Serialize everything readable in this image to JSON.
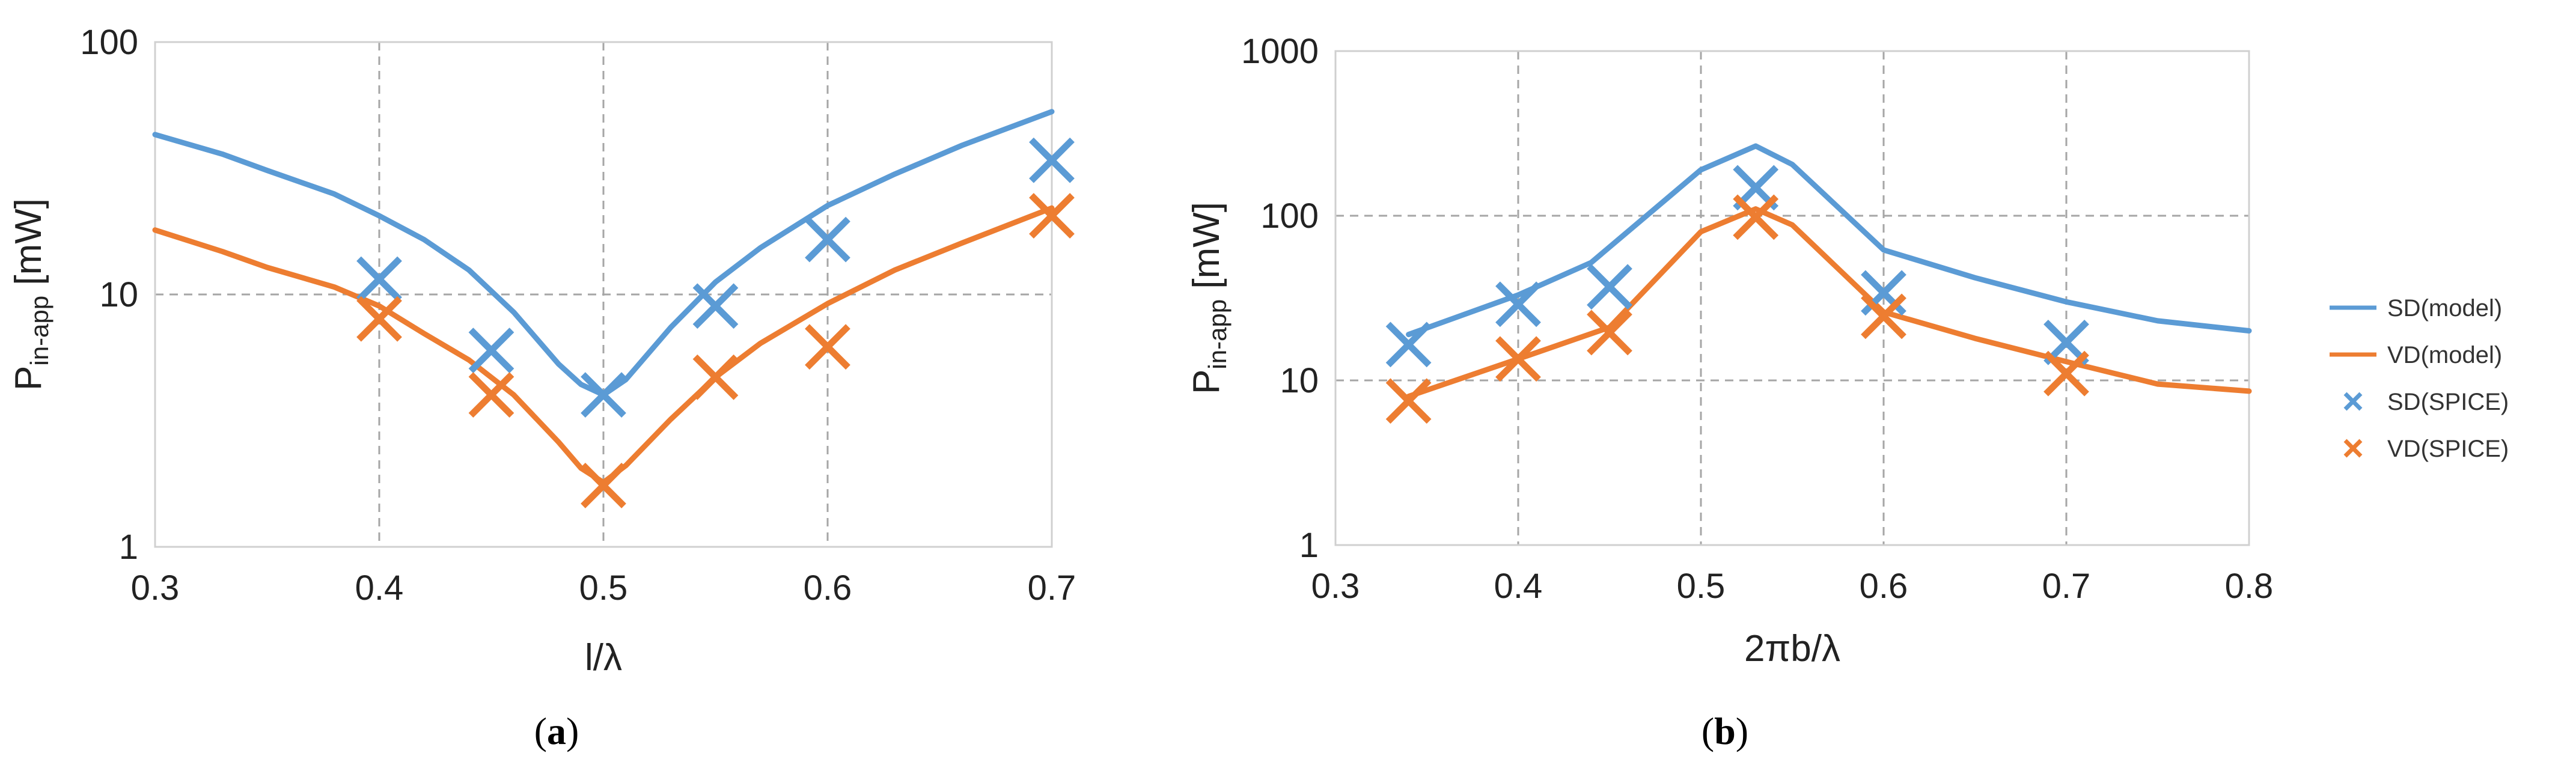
{
  "chart_data": [
    {
      "id": "a",
      "type": "line",
      "caption_letter": "a",
      "xlabel": "l/λ",
      "ylabel_main": "P",
      "ylabel_sub": "in-app",
      "ylabel_unit": " [mW]",
      "yscale": "log",
      "xlim": [
        0.3,
        0.7
      ],
      "ylim": [
        1,
        100
      ],
      "xticks": [
        "0.3",
        "0.4",
        "0.5",
        "0.6",
        "0.7"
      ],
      "xtick_values": [
        0.3,
        0.4,
        0.5,
        0.6,
        0.7
      ],
      "yticks": [
        "1",
        "10",
        "100"
      ],
      "ytick_values": [
        1,
        10,
        100
      ],
      "grid": true,
      "series": [
        {
          "name": "SD(model)",
          "kind": "line",
          "color": "#5B9BD5",
          "x": [
            0.3,
            0.33,
            0.35,
            0.38,
            0.4,
            0.42,
            0.44,
            0.46,
            0.48,
            0.49,
            0.5,
            0.51,
            0.53,
            0.55,
            0.57,
            0.6,
            0.63,
            0.66,
            0.7
          ],
          "y": [
            43,
            36,
            31,
            25,
            20.5,
            16.5,
            12.5,
            8.5,
            5.3,
            4.4,
            4.0,
            4.6,
            7.4,
            11.2,
            15.3,
            22.5,
            30,
            39,
            53
          ]
        },
        {
          "name": "VD(model)",
          "kind": "line",
          "color": "#ED7D31",
          "x": [
            0.3,
            0.33,
            0.35,
            0.38,
            0.4,
            0.42,
            0.44,
            0.46,
            0.48,
            0.49,
            0.5,
            0.51,
            0.53,
            0.55,
            0.57,
            0.6,
            0.63,
            0.66,
            0.7
          ],
          "y": [
            18,
            14.8,
            12.8,
            10.7,
            9.0,
            7.0,
            5.5,
            4.0,
            2.6,
            2.05,
            1.8,
            2.1,
            3.2,
            4.7,
            6.4,
            9.2,
            12.5,
            16,
            22
          ]
        },
        {
          "name": "SD(SPICE)",
          "kind": "marker",
          "color": "#5B9BD5",
          "x": [
            0.4,
            0.45,
            0.5,
            0.55,
            0.6,
            0.7
          ],
          "y": [
            11.5,
            6.0,
            4.0,
            9.0,
            16.5,
            34
          ]
        },
        {
          "name": "VD(SPICE)",
          "kind": "marker",
          "color": "#ED7D31",
          "x": [
            0.4,
            0.45,
            0.5,
            0.55,
            0.6,
            0.7
          ],
          "y": [
            8.0,
            4.0,
            1.75,
            4.7,
            6.2,
            20.5
          ]
        }
      ]
    },
    {
      "id": "b",
      "type": "line",
      "caption_letter": "b",
      "xlabel": "2πb/λ",
      "ylabel_main": "P",
      "ylabel_sub": "in-app",
      "ylabel_unit": " [mW]",
      "yscale": "log",
      "xlim": [
        0.3,
        0.8
      ],
      "ylim": [
        1,
        1000
      ],
      "xticks": [
        "0.3",
        "0.4",
        "0.5",
        "0.6",
        "0.7",
        "0.8"
      ],
      "xtick_values": [
        0.3,
        0.4,
        0.5,
        0.6,
        0.7,
        0.8
      ],
      "yticks": [
        "1",
        "10",
        "100",
        "1000"
      ],
      "ytick_values": [
        1,
        10,
        100,
        1000
      ],
      "grid": true,
      "series": [
        {
          "name": "SD(model)",
          "kind": "line",
          "color": "#5B9BD5",
          "x": [
            0.34,
            0.4,
            0.44,
            0.5,
            0.53,
            0.55,
            0.6,
            0.65,
            0.7,
            0.75,
            0.8
          ],
          "y": [
            19,
            33,
            52,
            190,
            265,
            205,
            62,
            42,
            30,
            23,
            20
          ]
        },
        {
          "name": "VD(model)",
          "kind": "line",
          "color": "#ED7D31",
          "x": [
            0.34,
            0.4,
            0.45,
            0.5,
            0.53,
            0.55,
            0.6,
            0.65,
            0.7,
            0.75,
            0.8
          ],
          "y": [
            8,
            13.5,
            21,
            80,
            110,
            88,
            26,
            18,
            13,
            9.5,
            8.6
          ]
        },
        {
          "name": "SD(SPICE)",
          "kind": "marker",
          "color": "#5B9BD5",
          "x": [
            0.34,
            0.4,
            0.45,
            0.53,
            0.6,
            0.7
          ],
          "y": [
            16.5,
            29,
            37,
            148,
            34,
            17
          ]
        },
        {
          "name": "VD(SPICE)",
          "kind": "marker",
          "color": "#ED7D31",
          "x": [
            0.34,
            0.4,
            0.45,
            0.53,
            0.6,
            0.7
          ],
          "y": [
            7.5,
            13.5,
            19.5,
            98,
            24.5,
            11
          ]
        }
      ]
    }
  ],
  "legend": {
    "items": [
      {
        "label": "SD(model)",
        "kind": "line",
        "color": "#5B9BD5"
      },
      {
        "label": "VD(model)",
        "kind": "line",
        "color": "#ED7D31"
      },
      {
        "label": "SD(SPICE)",
        "kind": "marker",
        "color": "#5B9BD5"
      },
      {
        "label": "VD(SPICE)",
        "kind": "marker",
        "color": "#ED7D31"
      }
    ]
  }
}
